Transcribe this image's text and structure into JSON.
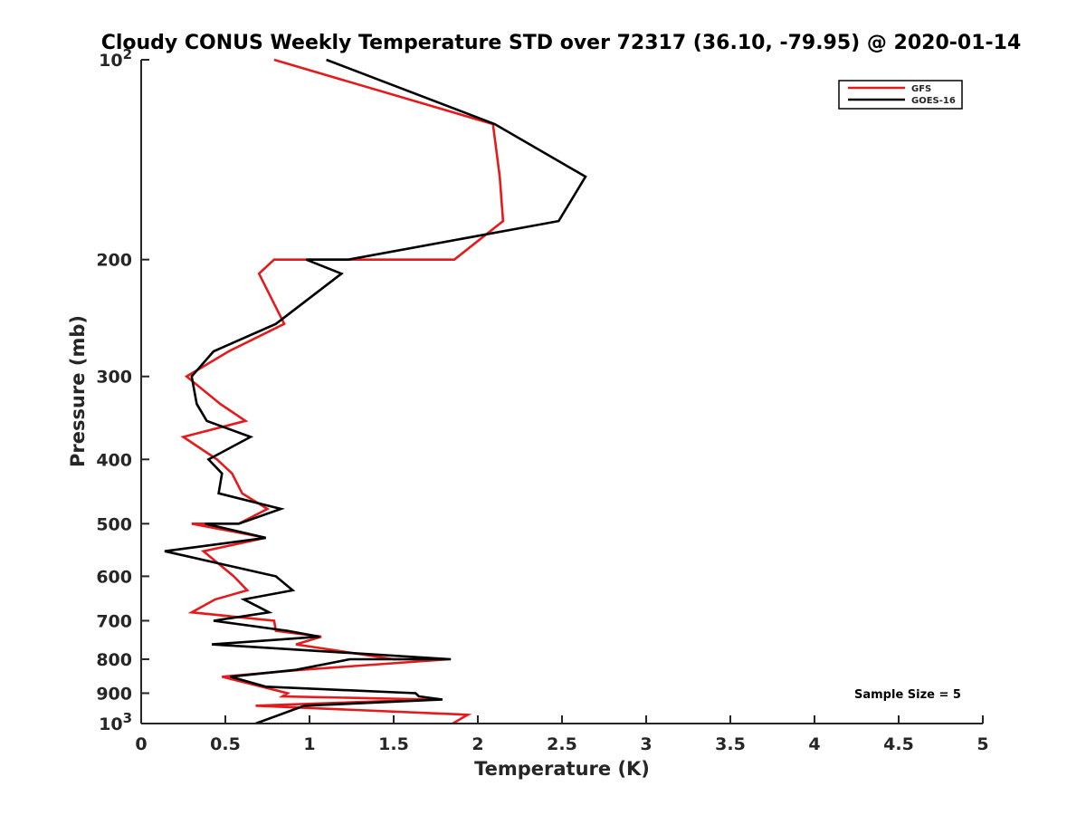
{
  "chart_data": {
    "type": "line",
    "title": "Cloudy CONUS Weekly Temperature STD over 72317 (36.10, -79.95) @ 2020-01-14",
    "xlabel": "Temperature (K)",
    "ylabel": "Pressure (mb)",
    "xlim": [
      0,
      5
    ],
    "ylim": [
      100,
      1000
    ],
    "y_scale": "log",
    "y_reversed": true,
    "grid": false,
    "legend_position": "top-right",
    "x_ticks": [
      "0",
      "0.5",
      "1",
      "1.5",
      "2",
      "2.5",
      "3",
      "3.5",
      "4",
      "4.5",
      "5"
    ],
    "y_ticks": [
      {
        "value": 100,
        "base": "10",
        "exp": "2"
      },
      {
        "value": 200,
        "label": "200"
      },
      {
        "value": 300,
        "label": "300"
      },
      {
        "value": 400,
        "label": "400"
      },
      {
        "value": 500,
        "label": "500"
      },
      {
        "value": 600,
        "label": "600"
      },
      {
        "value": 700,
        "label": "700"
      },
      {
        "value": 800,
        "label": "800"
      },
      {
        "value": 900,
        "label": "900"
      },
      {
        "value": 1000,
        "base": "10",
        "exp": "3"
      }
    ],
    "series": [
      {
        "name": "GFS",
        "color": "#e41a1c",
        "points": [
          [
            0.79,
            100
          ],
          [
            2.09,
            125
          ],
          [
            2.13,
            150
          ],
          [
            2.15,
            175
          ],
          [
            1.86,
            200
          ],
          [
            0.79,
            200
          ],
          [
            0.7,
            210
          ],
          [
            0.85,
            250
          ],
          [
            0.52,
            275
          ],
          [
            0.27,
            300
          ],
          [
            0.47,
            330
          ],
          [
            0.62,
            350
          ],
          [
            0.25,
            370
          ],
          [
            0.45,
            400
          ],
          [
            0.54,
            420
          ],
          [
            0.6,
            450
          ],
          [
            0.75,
            475
          ],
          [
            0.58,
            500
          ],
          [
            0.3,
            500
          ],
          [
            0.74,
            525
          ],
          [
            0.37,
            550
          ],
          [
            0.55,
            600
          ],
          [
            0.63,
            630
          ],
          [
            0.44,
            650
          ],
          [
            0.3,
            680
          ],
          [
            0.79,
            700
          ],
          [
            0.8,
            725
          ],
          [
            1.07,
            740
          ],
          [
            0.92,
            760
          ],
          [
            1.5,
            800
          ],
          [
            1.83,
            800
          ],
          [
            0.95,
            830
          ],
          [
            0.48,
            850
          ],
          [
            0.87,
            900
          ],
          [
            0.84,
            910
          ],
          [
            1.72,
            920
          ],
          [
            0.68,
            940
          ],
          [
            1.94,
            970
          ],
          [
            1.85,
            1000
          ]
        ]
      },
      {
        "name": "GOES-16",
        "color": "#000000",
        "points": [
          [
            1.1,
            100
          ],
          [
            2.1,
            125
          ],
          [
            2.64,
            150
          ],
          [
            2.48,
            175
          ],
          [
            1.23,
            200
          ],
          [
            0.98,
            200
          ],
          [
            1.19,
            210
          ],
          [
            0.8,
            250
          ],
          [
            0.43,
            275
          ],
          [
            0.3,
            300
          ],
          [
            0.33,
            330
          ],
          [
            0.39,
            350
          ],
          [
            0.65,
            370
          ],
          [
            0.4,
            400
          ],
          [
            0.48,
            420
          ],
          [
            0.46,
            450
          ],
          [
            0.83,
            475
          ],
          [
            0.58,
            500
          ],
          [
            0.38,
            500
          ],
          [
            0.74,
            525
          ],
          [
            0.14,
            550
          ],
          [
            0.8,
            600
          ],
          [
            0.9,
            630
          ],
          [
            0.61,
            650
          ],
          [
            0.76,
            680
          ],
          [
            0.43,
            700
          ],
          [
            0.87,
            725
          ],
          [
            1.06,
            740
          ],
          [
            0.42,
            760
          ],
          [
            1.84,
            800
          ],
          [
            1.24,
            800
          ],
          [
            0.92,
            830
          ],
          [
            0.53,
            850
          ],
          [
            0.74,
            880
          ],
          [
            1.63,
            900
          ],
          [
            1.65,
            910
          ],
          [
            1.79,
            920
          ],
          [
            0.97,
            940
          ],
          [
            0.68,
            1000
          ]
        ]
      }
    ],
    "annotations": [
      "Sample Size = 5"
    ]
  }
}
